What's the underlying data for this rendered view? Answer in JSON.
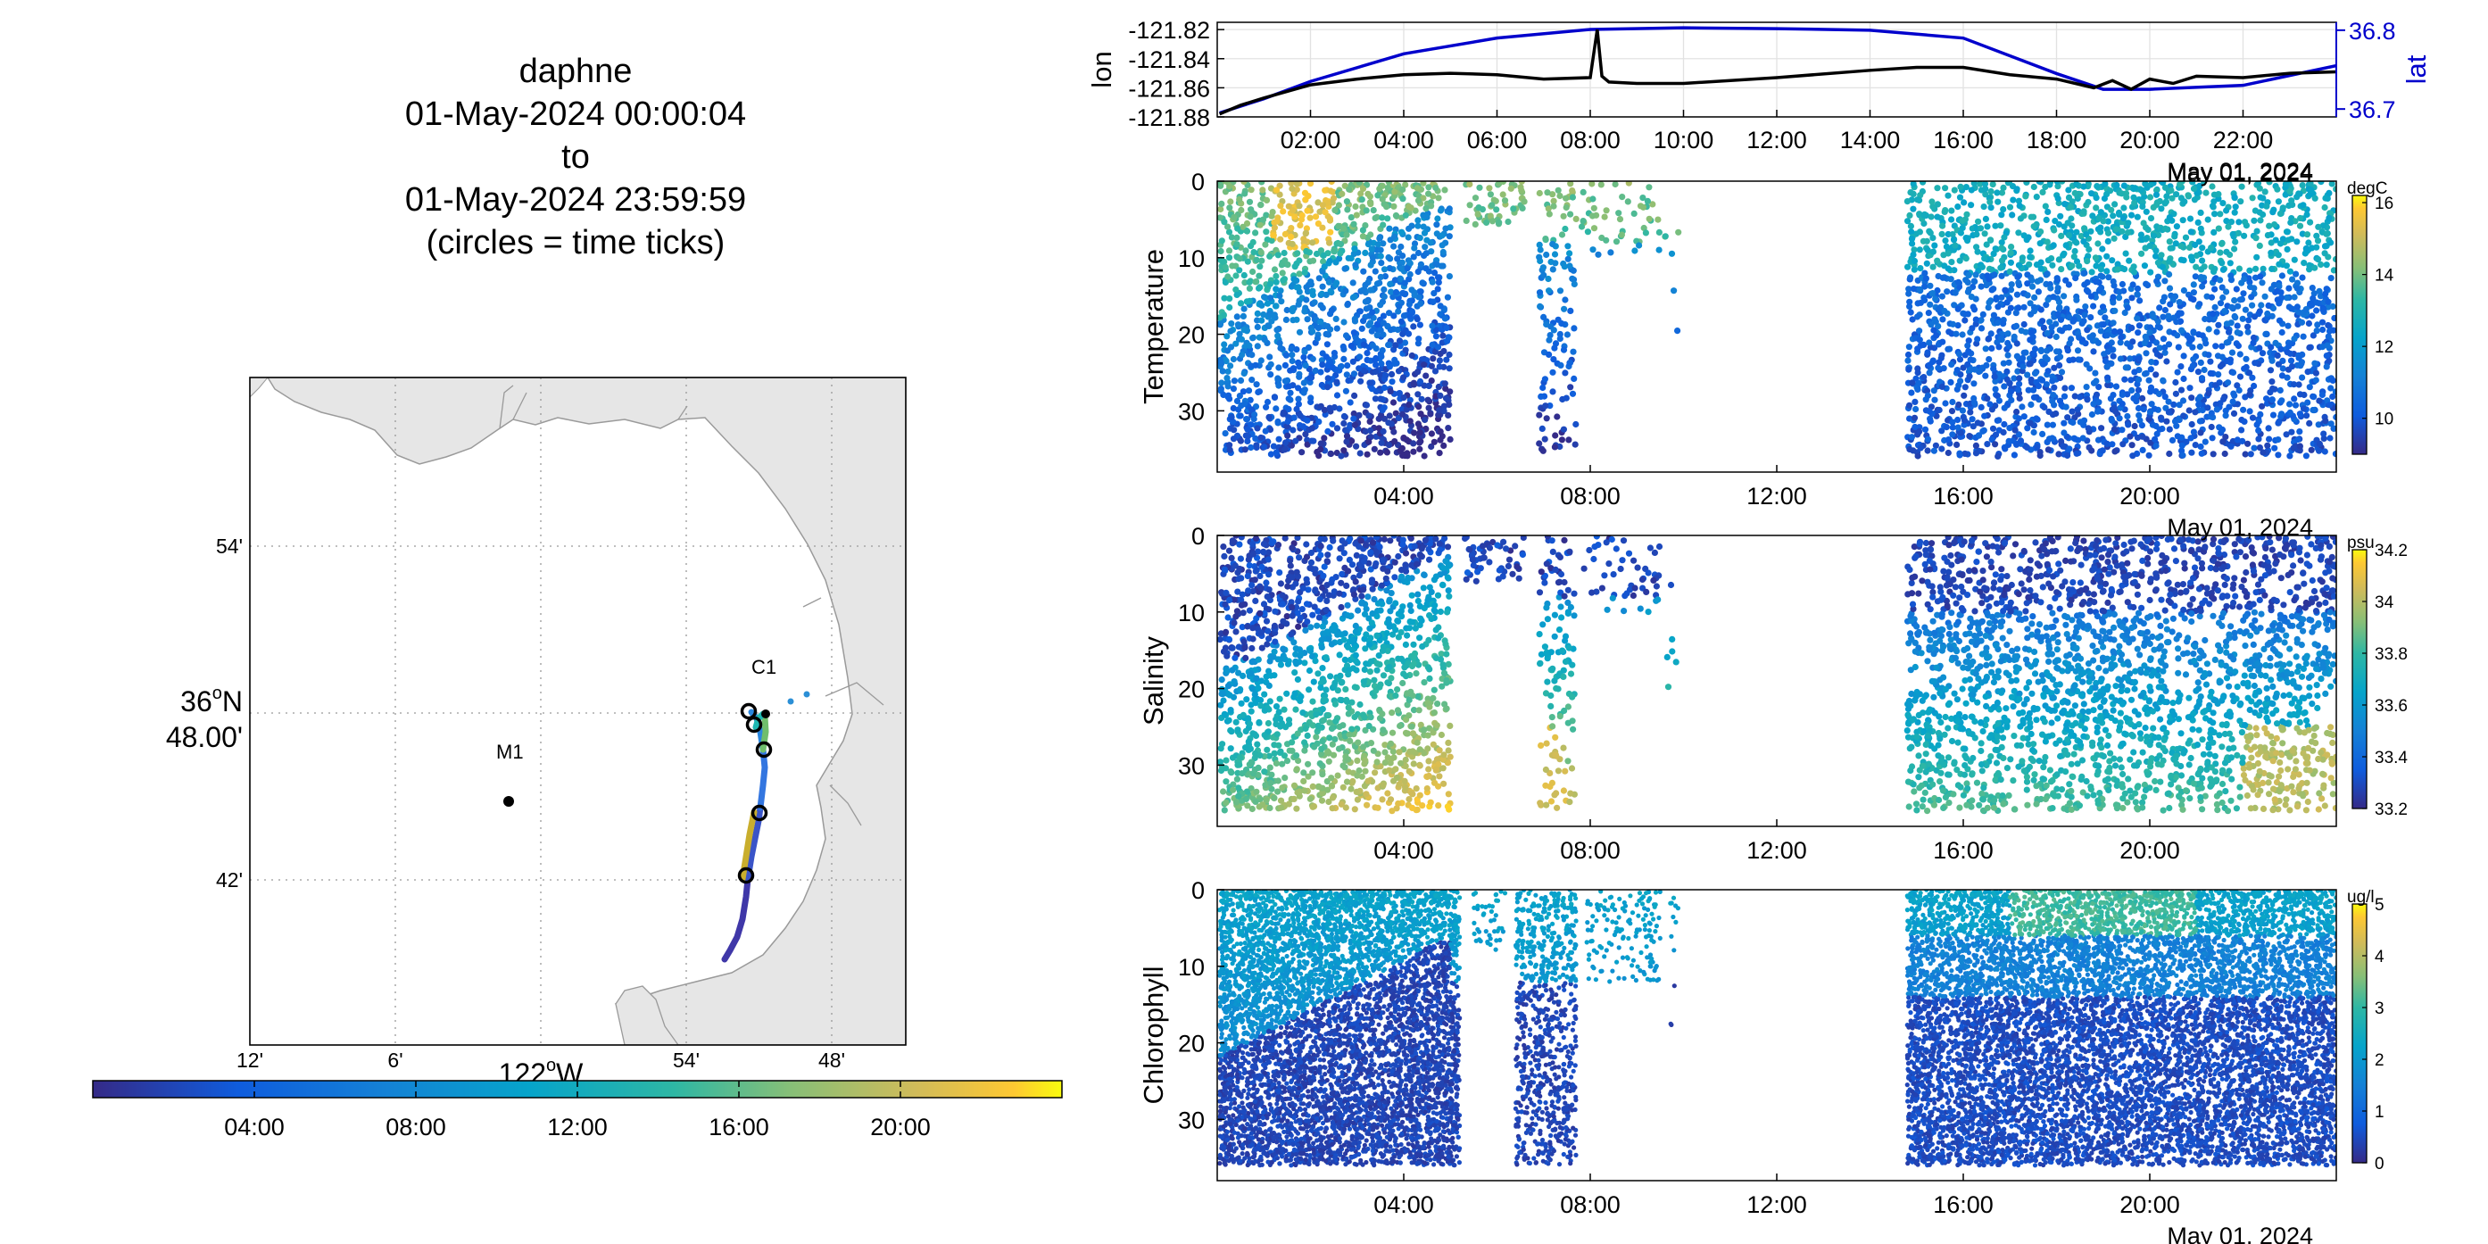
{
  "title": {
    "lines": [
      "daphne",
      "01-May-2024 00:00:04",
      "to",
      "01-May-2024 23:59:59",
      "(circles = time ticks)"
    ]
  },
  "map": {
    "lat_ticks": [
      "54'",
      "36ºN\n48.00'",
      "42'"
    ],
    "lon_ticks": [
      "12'",
      "6'",
      "122ºW",
      "54'",
      "48'"
    ],
    "lat_label_main": "36",
    "lat_label_deg": "o",
    "lat_label_hem": "N",
    "lat_label_sub": "48.00'",
    "lon_label_main": "122",
    "lon_label_deg": "o",
    "lon_label_hem": "W",
    "stations": [
      {
        "name": "M1",
        "lon": -122.03,
        "lat": 36.747
      },
      {
        "name": "C1",
        "lon": -121.85,
        "lat": 36.8
      }
    ],
    "land_color": "#e6e6e6",
    "coast_color": "#9a9a9a",
    "time_colorbar_ticks": [
      "04:00",
      "08:00",
      "12:00",
      "16:00",
      "20:00"
    ]
  },
  "chart_data": [
    {
      "id": "position",
      "type": "line",
      "x_ticks": [
        "02:00",
        "04:00",
        "06:00",
        "08:00",
        "10:00",
        "12:00",
        "14:00",
        "16:00",
        "18:00",
        "20:00",
        "22:00"
      ],
      "date_label": "May 01, 2024",
      "left_axis": {
        "label": "lon",
        "ticks": [
          "-121.82",
          "-121.84",
          "-121.86",
          "-121.88"
        ],
        "ylim": [
          -121.88,
          -121.815
        ],
        "color": "#000000"
      },
      "right_axis": {
        "label": "lat",
        "ticks": [
          "36.8",
          "36.7"
        ],
        "ylim": [
          36.69,
          36.81
        ],
        "color": "#0000cc"
      },
      "series": [
        {
          "name": "lon",
          "color": "#000000",
          "x": [
            0.05,
            0.5,
            1,
            2,
            3,
            4,
            5,
            6,
            7,
            8,
            8.15,
            8.25,
            8.4,
            9,
            10,
            12,
            14,
            15,
            16,
            17,
            18,
            18.8,
            19.2,
            19.6,
            20,
            20.5,
            21,
            22,
            23,
            24
          ],
          "y": [
            -121.878,
            -121.872,
            -121.867,
            -121.858,
            -121.854,
            -121.851,
            -121.85,
            -121.851,
            -121.854,
            -121.853,
            -121.82,
            -121.852,
            -121.856,
            -121.857,
            -121.857,
            -121.853,
            -121.848,
            -121.846,
            -121.846,
            -121.851,
            -121.854,
            -121.86,
            -121.855,
            -121.861,
            -121.854,
            -121.857,
            -121.852,
            -121.853,
            -121.85,
            -121.849
          ]
        },
        {
          "name": "lat",
          "color": "#0000cc",
          "x": [
            0.05,
            1,
            2,
            4,
            6,
            8,
            10,
            12,
            14,
            16,
            18,
            19,
            20,
            22,
            24
          ],
          "y": [
            36.695,
            36.713,
            36.735,
            36.77,
            36.79,
            36.801,
            36.803,
            36.802,
            36.8,
            36.79,
            36.745,
            36.725,
            36.725,
            36.73,
            36.755
          ]
        }
      ]
    },
    {
      "id": "temperature",
      "type": "scatter",
      "ylabel": "Temperature",
      "y_ticks": [
        "0",
        "10",
        "20",
        "30"
      ],
      "ylim": [
        0,
        38
      ],
      "x_ticks": [
        "04:00",
        "08:00",
        "12:00",
        "16:00",
        "20:00"
      ],
      "date_label": "May 01, 2024",
      "colorbar": {
        "unit": "degC",
        "ticks": [
          "16",
          "14",
          "12",
          "10"
        ],
        "range": [
          9,
          16.2
        ]
      },
      "gaps": [
        [
          5.0,
          5.3
        ],
        [
          10.0,
          14.8
        ]
      ],
      "summary": "time vs depth, colored by temperature; warm surface early and at surface after 15:00"
    },
    {
      "id": "salinity",
      "type": "scatter",
      "ylabel": "Salinity",
      "y_ticks": [
        "0",
        "10",
        "20",
        "30"
      ],
      "ylim": [
        0,
        38
      ],
      "x_ticks": [
        "04:00",
        "08:00",
        "12:00",
        "16:00",
        "20:00"
      ],
      "date_label": "May 01, 2024",
      "colorbar": {
        "unit": "psu",
        "ticks": [
          "34.2",
          "34",
          "33.8",
          "33.6",
          "33.4",
          "33.2"
        ],
        "range": [
          33.2,
          34.2
        ]
      }
    },
    {
      "id": "chlorophyll",
      "type": "scatter",
      "ylabel": "Chlorophyll",
      "y_ticks": [
        "0",
        "10",
        "20",
        "30"
      ],
      "ylim": [
        0,
        38
      ],
      "x_ticks": [
        "04:00",
        "08:00",
        "12:00",
        "16:00",
        "20:00"
      ],
      "date_label": "May 01, 2024",
      "colorbar": {
        "unit": "ug/l",
        "ticks": [
          "5",
          "4",
          "3",
          "2",
          "1",
          "0"
        ],
        "range": [
          0,
          5
        ]
      }
    }
  ]
}
